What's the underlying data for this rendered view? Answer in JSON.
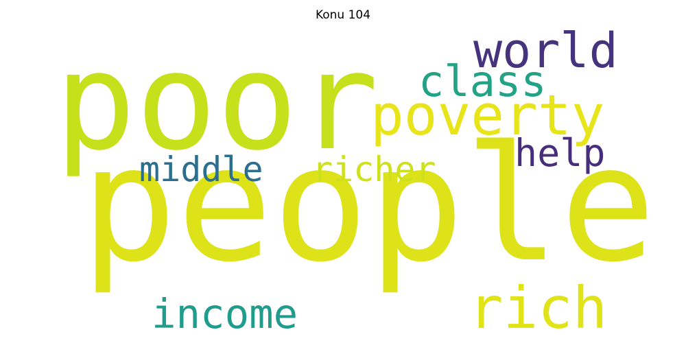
{
  "title": "Konu 104",
  "words": {
    "poor": {
      "text": "poor",
      "color": "#c6e01c"
    },
    "people": {
      "text": "people",
      "color": "#dde318"
    },
    "poverty": {
      "text": "poverty",
      "color": "#e7e41a"
    },
    "world": {
      "text": "world",
      "color": "#46337e"
    },
    "class": {
      "text": "class",
      "color": "#22a385"
    },
    "help": {
      "text": "help",
      "color": "#472e7c"
    },
    "middle": {
      "text": "middle",
      "color": "#2c6e8e"
    },
    "richer": {
      "text": "richer",
      "color": "#cde11d"
    },
    "income": {
      "text": "income",
      "color": "#209c8c"
    },
    "rich": {
      "text": "rich",
      "color": "#dfe318"
    }
  }
}
